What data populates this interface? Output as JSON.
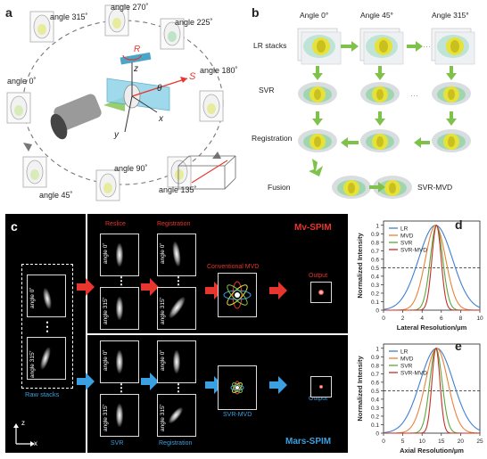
{
  "panel_a": {
    "label": "a",
    "angles": [
      "angle 315˚",
      "angle 270˚",
      "angle 225˚",
      "angle 0˚",
      "angle 180˚",
      "angle 45˚",
      "angle 90˚",
      "angle 135˚"
    ],
    "axis_labels": {
      "R": "R",
      "z": "z",
      "theta": "θ",
      "S": "S",
      "x": "x",
      "y": "y"
    }
  },
  "panel_b": {
    "label": "b",
    "col_headers": [
      "Angle 0°",
      "Angle 45°",
      "Angle 315°"
    ],
    "row_labels": [
      "LR stacks",
      "SVR",
      "Registration",
      "Fusion"
    ],
    "output_label": "SVR-MVD"
  },
  "panel_c": {
    "label": "c",
    "top_title": "Mv-SPIM",
    "bottom_title": "Mars-SPIM",
    "reslice": "Reslice",
    "registration_top": "Registration",
    "conv_mvd": "Conventional MVD",
    "output_top": "Output",
    "raw_stacks": "Raw stacks",
    "svr": "SVR",
    "registration_bottom": "Registration",
    "svr_mvd": "SVR-MVD",
    "output_bottom": "Output",
    "angle0": "angle 0˚",
    "angle315": "angle 315˚",
    "dots": "⋮",
    "axis_z": "z",
    "axis_x": "x"
  },
  "chart_data": [
    {
      "panel": "d",
      "type": "line",
      "xlabel": "Lateral Resolution/µm",
      "ylabel": "Normalized Intensity",
      "xlim": [
        0,
        10
      ],
      "ylim": [
        0,
        1.05
      ],
      "xticks": [
        0,
        2,
        4,
        6,
        8,
        10
      ],
      "yticks": [
        0,
        0.1,
        0.2,
        0.3,
        0.4,
        0.5,
        0.6,
        0.7,
        0.8,
        0.9,
        1
      ],
      "reference_line": 0.5,
      "legend": "top-left",
      "series": [
        {
          "name": "LR",
          "color": "#3f7fd0",
          "center": 5.4,
          "sigma": 1.75
        },
        {
          "name": "MVD",
          "color": "#e8823a",
          "center": 5.4,
          "sigma": 1.05
        },
        {
          "name": "SVR",
          "color": "#5aa83a",
          "center": 5.5,
          "sigma": 0.65
        },
        {
          "name": "SVR-MVD",
          "color": "#c4302b",
          "center": 5.5,
          "sigma": 0.48
        }
      ]
    },
    {
      "panel": "e",
      "type": "line",
      "xlabel": "Axial Resolution/µm",
      "ylabel": "Normalized Intensity",
      "xlim": [
        0,
        25
      ],
      "ylim": [
        0,
        1.05
      ],
      "xticks": [
        0,
        5,
        10,
        15,
        20,
        25
      ],
      "yticks": [
        0,
        0.1,
        0.2,
        0.3,
        0.4,
        0.5,
        0.6,
        0.7,
        0.8,
        0.9,
        1
      ],
      "reference_line": 0.5,
      "legend": "top-left",
      "series": [
        {
          "name": "LR",
          "color": "#3f7fd0",
          "center": 13.8,
          "sigma": 4.3
        },
        {
          "name": "MVD",
          "color": "#e8823a",
          "center": 13.8,
          "sigma": 2.9
        },
        {
          "name": "SVR",
          "color": "#5aa83a",
          "center": 13.6,
          "sigma": 1.6
        },
        {
          "name": "SVR-MVD",
          "color": "#c4302b",
          "center": 13.6,
          "sigma": 1.05
        }
      ]
    }
  ],
  "colors": {
    "red": "#e8352d",
    "blue": "#3aa0e0",
    "green": "#7ec24b",
    "yellow": "#e6e23a"
  }
}
